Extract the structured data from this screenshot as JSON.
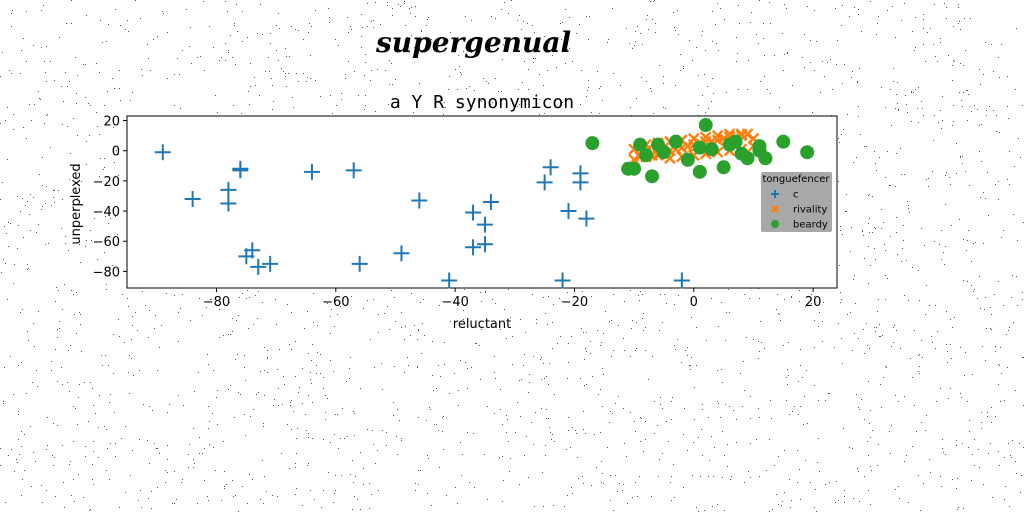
{
  "banner": "supergenual",
  "chart_data": {
    "type": "scatter",
    "title": "a Y R synonymicon",
    "xlabel": "reluctant",
    "ylabel": "unperplexed",
    "xlim": [
      -95,
      24
    ],
    "ylim": [
      -91,
      23
    ],
    "xticks": [
      -80,
      -60,
      -40,
      -20,
      0,
      20
    ],
    "yticks": [
      20,
      0,
      -20,
      -40,
      -60,
      -80
    ],
    "xtick_labels": [
      "−80",
      "−60",
      "−40",
      "−20",
      "0",
      "20"
    ],
    "ytick_labels": [
      "20",
      "0",
      "−20",
      "−40",
      "−60",
      "−80"
    ],
    "legend": {
      "title": "tonguefencer",
      "position": "right"
    },
    "series": [
      {
        "name": "c",
        "marker": "plus",
        "color": "#1f77b4",
        "points": [
          [
            -89,
            -1
          ],
          [
            -84,
            -32
          ],
          [
            -78,
            -26
          ],
          [
            -78,
            -35
          ],
          [
            -76,
            -12
          ],
          [
            -76,
            -13
          ],
          [
            -75,
            -70
          ],
          [
            -74,
            -66
          ],
          [
            -73,
            -77
          ],
          [
            -71,
            -75
          ],
          [
            -64,
            -14
          ],
          [
            -57,
            -13
          ],
          [
            -56,
            -75
          ],
          [
            -49,
            -68
          ],
          [
            -46,
            -33
          ],
          [
            -41,
            -86
          ],
          [
            -37,
            -64
          ],
          [
            -37,
            -41
          ],
          [
            -35,
            -62
          ],
          [
            -35,
            -49
          ],
          [
            -34,
            -34
          ],
          [
            -25,
            -21
          ],
          [
            -24,
            -11
          ],
          [
            -22,
            -86
          ],
          [
            -21,
            -40
          ],
          [
            -19,
            -15
          ],
          [
            -19,
            -21
          ],
          [
            -18,
            -45
          ],
          [
            -2,
            -86
          ]
        ]
      },
      {
        "name": "rivality",
        "marker": "x",
        "color": "#ff7f0e",
        "points": [
          [
            -10,
            -6
          ],
          [
            -9,
            -4
          ],
          [
            -8,
            -4
          ],
          [
            -7,
            -3
          ],
          [
            -6,
            -2
          ],
          [
            -5,
            -1
          ],
          [
            -4,
            0
          ],
          [
            -3,
            1
          ],
          [
            -2,
            2
          ],
          [
            -1,
            3
          ],
          [
            0,
            4
          ],
          [
            1,
            5
          ],
          [
            2,
            6
          ],
          [
            3,
            6
          ],
          [
            4,
            7
          ],
          [
            5,
            8
          ],
          [
            6,
            9
          ],
          [
            7,
            9
          ],
          [
            8,
            10
          ],
          [
            9,
            11
          ],
          [
            -9,
            3
          ],
          [
            -8,
            4
          ],
          [
            -6,
            5
          ],
          [
            -4,
            6
          ],
          [
            -2,
            7
          ],
          [
            0,
            8
          ],
          [
            2,
            9
          ],
          [
            4,
            10
          ],
          [
            6,
            11
          ],
          [
            8,
            11
          ],
          [
            -10,
            1
          ],
          [
            -8,
            0
          ],
          [
            -6,
            -3
          ],
          [
            -4,
            -5
          ],
          [
            -2,
            -4
          ],
          [
            0,
            -3
          ],
          [
            2,
            -2
          ],
          [
            4,
            -1
          ],
          [
            6,
            0
          ],
          [
            8,
            1
          ],
          [
            10,
            3
          ],
          [
            10,
            8
          ]
        ]
      },
      {
        "name": "beardy",
        "marker": "circle",
        "color": "#2ca02c",
        "points": [
          [
            -17,
            5
          ],
          [
            -11,
            -12
          ],
          [
            -10,
            -12
          ],
          [
            -9,
            4
          ],
          [
            -8,
            -3
          ],
          [
            -7,
            -17
          ],
          [
            -6,
            4
          ],
          [
            -5,
            -1
          ],
          [
            -3,
            6
          ],
          [
            -1,
            -6
          ],
          [
            1,
            2
          ],
          [
            2,
            17
          ],
          [
            1,
            -14
          ],
          [
            3,
            1
          ],
          [
            5,
            -11
          ],
          [
            6,
            4
          ],
          [
            7,
            6
          ],
          [
            8,
            -2
          ],
          [
            9,
            -5
          ],
          [
            11,
            3
          ],
          [
            12,
            -5
          ],
          [
            15,
            6
          ],
          [
            19,
            -1
          ],
          [
            11,
            0
          ]
        ]
      }
    ]
  }
}
